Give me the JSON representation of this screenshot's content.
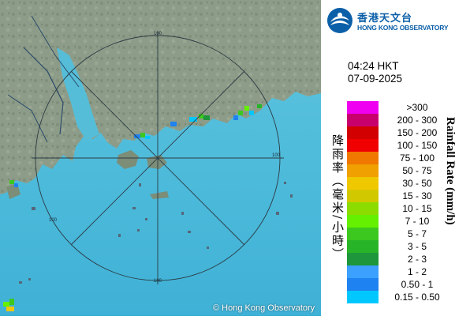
{
  "logo": {
    "name_zh": "香港天文台",
    "name_en": "HONG KONG OBSERVATORY"
  },
  "time": "04:24 HKT",
  "date": "07-09-2025",
  "legend": {
    "title_zh": "降雨率（毫米/小時）",
    "title_en": "Rainfall Rate (mm/h)",
    "items": [
      {
        "label": ">300",
        "color": "#f000f0"
      },
      {
        "label": "200 - 300",
        "color": "#c8006e"
      },
      {
        "label": "150 - 200",
        "color": "#d20000"
      },
      {
        "label": "100 - 150",
        "color": "#f00000"
      },
      {
        "label": "75 - 100",
        "color": "#f07800"
      },
      {
        "label": "50 - 75",
        "color": "#f0a000"
      },
      {
        "label": "30 - 50",
        "color": "#f0c800"
      },
      {
        "label": "15 - 30",
        "color": "#d2c800"
      },
      {
        "label": "10 - 15",
        "color": "#8cdc00"
      },
      {
        "label": "7 - 10",
        "color": "#64f000"
      },
      {
        "label": "5 - 7",
        "color": "#3cc81e"
      },
      {
        "label": "3 - 5",
        "color": "#28b428"
      },
      {
        "label": "2 - 3",
        "color": "#1e963c"
      },
      {
        "label": "1 - 2",
        "color": "#3ca0ff"
      },
      {
        "label": "0.50 - 1",
        "color": "#1e82f0"
      },
      {
        "label": "0.15 - 0.50",
        "color": "#00c8ff"
      }
    ]
  },
  "range_rings": {
    "label": "100"
  },
  "credit": "© Hong Kong Observatory",
  "colors": {
    "sea": "#52c2dc",
    "land": "#8a9a86",
    "brand": "#0b5fa8"
  }
}
